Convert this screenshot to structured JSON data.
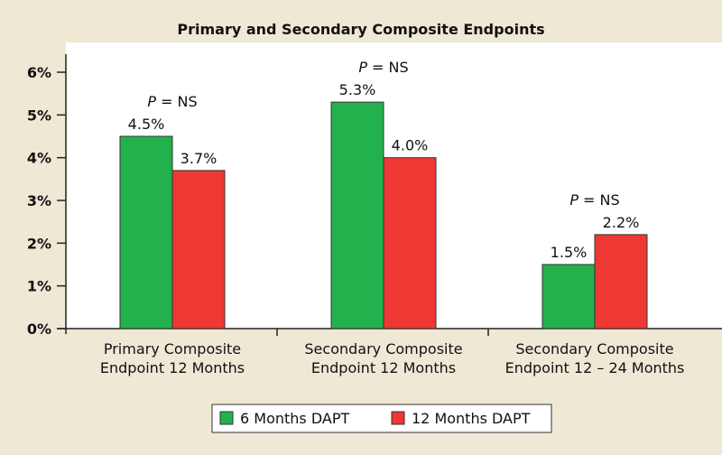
{
  "chart_data": {
    "type": "bar",
    "title": "Primary and Secondary Composite Endpoints",
    "xlabel": "",
    "ylabel": "",
    "ylim": [
      0,
      6
    ],
    "y_ticks": [
      "0%",
      "1%",
      "2%",
      "3%",
      "4%",
      "5%",
      "6%"
    ],
    "categories": [
      [
        "Primary Composite",
        "Endpoint 12 Months"
      ],
      [
        "Secondary Composite",
        "Endpoint 12 Months"
      ],
      [
        "Secondary Composite",
        "Endpoint 12 – 24 Months"
      ]
    ],
    "series": [
      {
        "name": "6 Months DAPT",
        "color": "#22b14c",
        "values": [
          4.5,
          5.3,
          1.5
        ],
        "labels": [
          "4.5%",
          "5.3%",
          "1.5%"
        ]
      },
      {
        "name": "12 Months DAPT",
        "color": "#ee3833",
        "values": [
          3.7,
          4.0,
          2.2
        ],
        "labels": [
          "3.7%",
          "4.0%",
          "2.2%"
        ]
      }
    ],
    "annotations": [
      {
        "p": "P",
        "rest": " = NS"
      },
      {
        "p": "P",
        "rest": " = NS"
      },
      {
        "p": "P",
        "rest": " = NS"
      }
    ],
    "legend_position": "bottom-center",
    "grid": false
  }
}
